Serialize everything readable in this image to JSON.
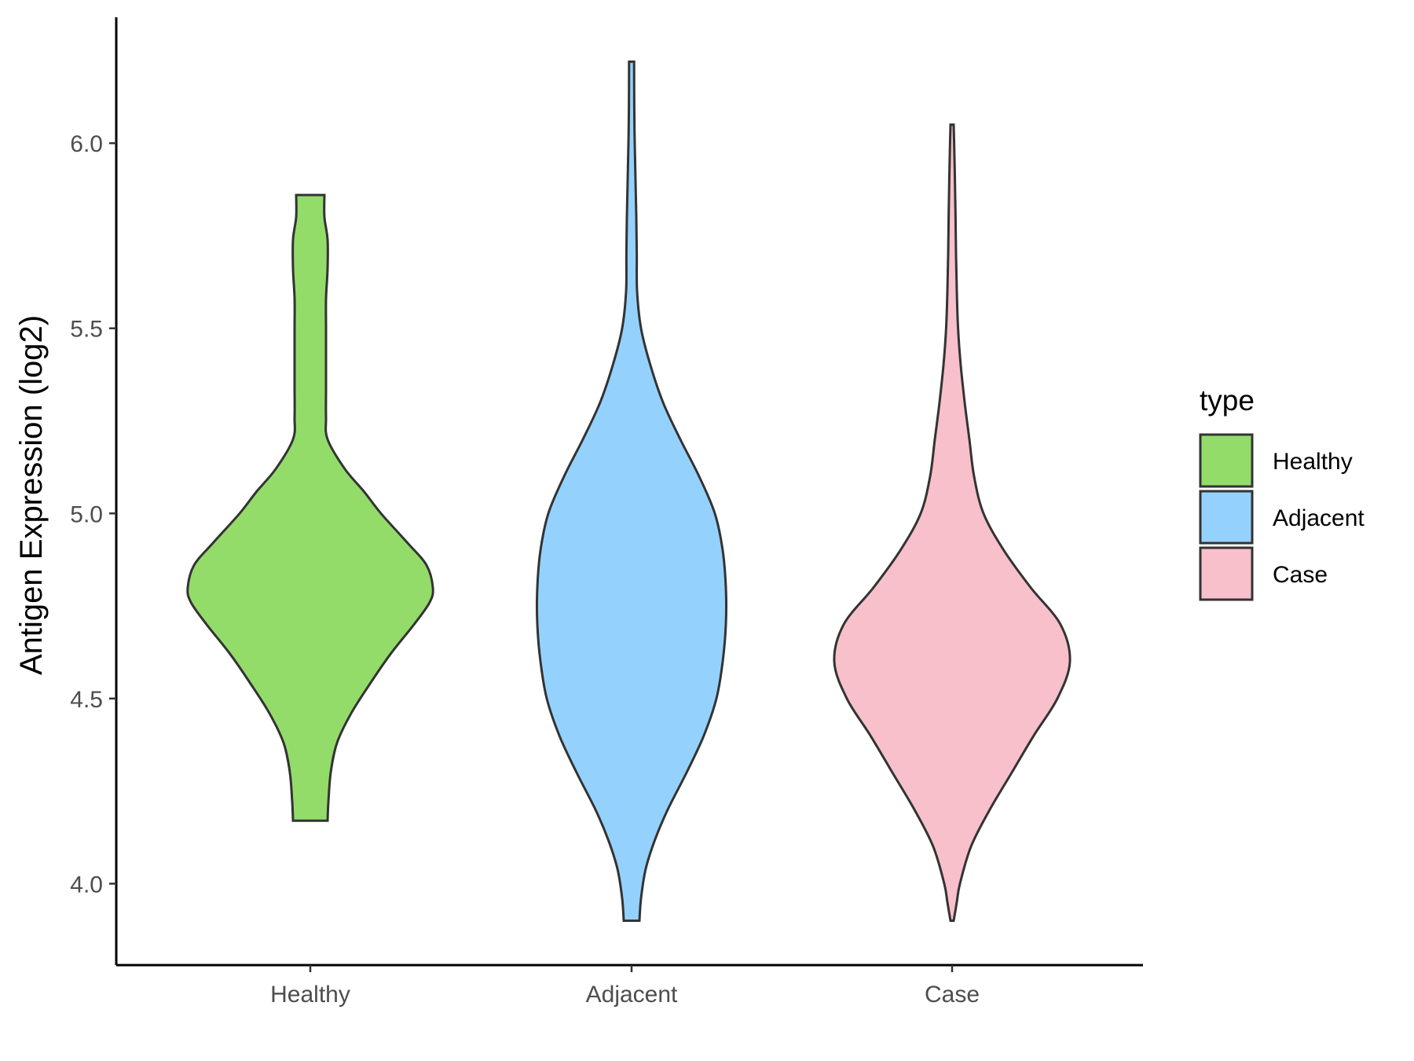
{
  "chart_data": {
    "type": "violin",
    "title": "",
    "xlabel": "",
    "ylabel": "Antigen Expression (log2)",
    "ylim": [
      3.78,
      6.34
    ],
    "yticks": [
      "4.0",
      "4.5",
      "5.0",
      "5.5",
      "6.0"
    ],
    "categories": [
      "Healthy",
      "Adjacent",
      "Case"
    ],
    "legend": {
      "title": "type",
      "position": "right",
      "entries": [
        "Healthy",
        "Adjacent",
        "Case"
      ]
    },
    "colors": {
      "Healthy": "#93dc6a",
      "Adjacent": "#94d2fd",
      "Case": "#f7c0cb"
    },
    "violins": [
      {
        "name": "Healthy",
        "min": 4.17,
        "max": 5.86,
        "profile": [
          [
            4.17,
            0.11
          ],
          [
            4.22,
            0.115
          ],
          [
            4.3,
            0.13
          ],
          [
            4.38,
            0.17
          ],
          [
            4.46,
            0.26
          ],
          [
            4.54,
            0.38
          ],
          [
            4.62,
            0.51
          ],
          [
            4.7,
            0.66
          ],
          [
            4.76,
            0.76
          ],
          [
            4.8,
            0.78
          ],
          [
            4.86,
            0.74
          ],
          [
            4.92,
            0.62
          ],
          [
            5.0,
            0.45
          ],
          [
            5.06,
            0.34
          ],
          [
            5.12,
            0.22
          ],
          [
            5.2,
            0.11
          ],
          [
            5.26,
            0.1
          ],
          [
            5.34,
            0.1
          ],
          [
            5.42,
            0.1
          ],
          [
            5.5,
            0.1
          ],
          [
            5.58,
            0.1
          ],
          [
            5.66,
            0.11
          ],
          [
            5.74,
            0.11
          ],
          [
            5.8,
            0.09
          ],
          [
            5.86,
            0.09
          ]
        ]
      },
      {
        "name": "Adjacent",
        "min": 3.9,
        "max": 6.22,
        "profile": [
          [
            3.9,
            0.05
          ],
          [
            3.96,
            0.06
          ],
          [
            4.04,
            0.09
          ],
          [
            4.12,
            0.15
          ],
          [
            4.2,
            0.23
          ],
          [
            4.3,
            0.35
          ],
          [
            4.4,
            0.46
          ],
          [
            4.5,
            0.54
          ],
          [
            4.6,
            0.58
          ],
          [
            4.7,
            0.6
          ],
          [
            4.8,
            0.6
          ],
          [
            4.9,
            0.58
          ],
          [
            5.0,
            0.53
          ],
          [
            5.1,
            0.43
          ],
          [
            5.2,
            0.31
          ],
          [
            5.3,
            0.2
          ],
          [
            5.4,
            0.12
          ],
          [
            5.5,
            0.06
          ],
          [
            5.6,
            0.035
          ],
          [
            5.7,
            0.033
          ],
          [
            5.8,
            0.03
          ],
          [
            5.9,
            0.025
          ],
          [
            6.0,
            0.02
          ],
          [
            6.1,
            0.017
          ],
          [
            6.22,
            0.016
          ]
        ]
      },
      {
        "name": "Case",
        "min": 3.9,
        "max": 6.05,
        "profile": [
          [
            3.9,
            0.01
          ],
          [
            3.95,
            0.03
          ],
          [
            4.0,
            0.05
          ],
          [
            4.1,
            0.12
          ],
          [
            4.2,
            0.24
          ],
          [
            4.3,
            0.38
          ],
          [
            4.4,
            0.52
          ],
          [
            4.5,
            0.67
          ],
          [
            4.6,
            0.75
          ],
          [
            4.7,
            0.69
          ],
          [
            4.8,
            0.5
          ],
          [
            4.9,
            0.33
          ],
          [
            5.0,
            0.2
          ],
          [
            5.1,
            0.14
          ],
          [
            5.2,
            0.11
          ],
          [
            5.3,
            0.08
          ],
          [
            5.4,
            0.055
          ],
          [
            5.5,
            0.038
          ],
          [
            5.6,
            0.03
          ],
          [
            5.7,
            0.025
          ],
          [
            5.8,
            0.022
          ],
          [
            5.9,
            0.018
          ],
          [
            6.0,
            0.013
          ],
          [
            6.05,
            0.01
          ]
        ]
      }
    ]
  }
}
